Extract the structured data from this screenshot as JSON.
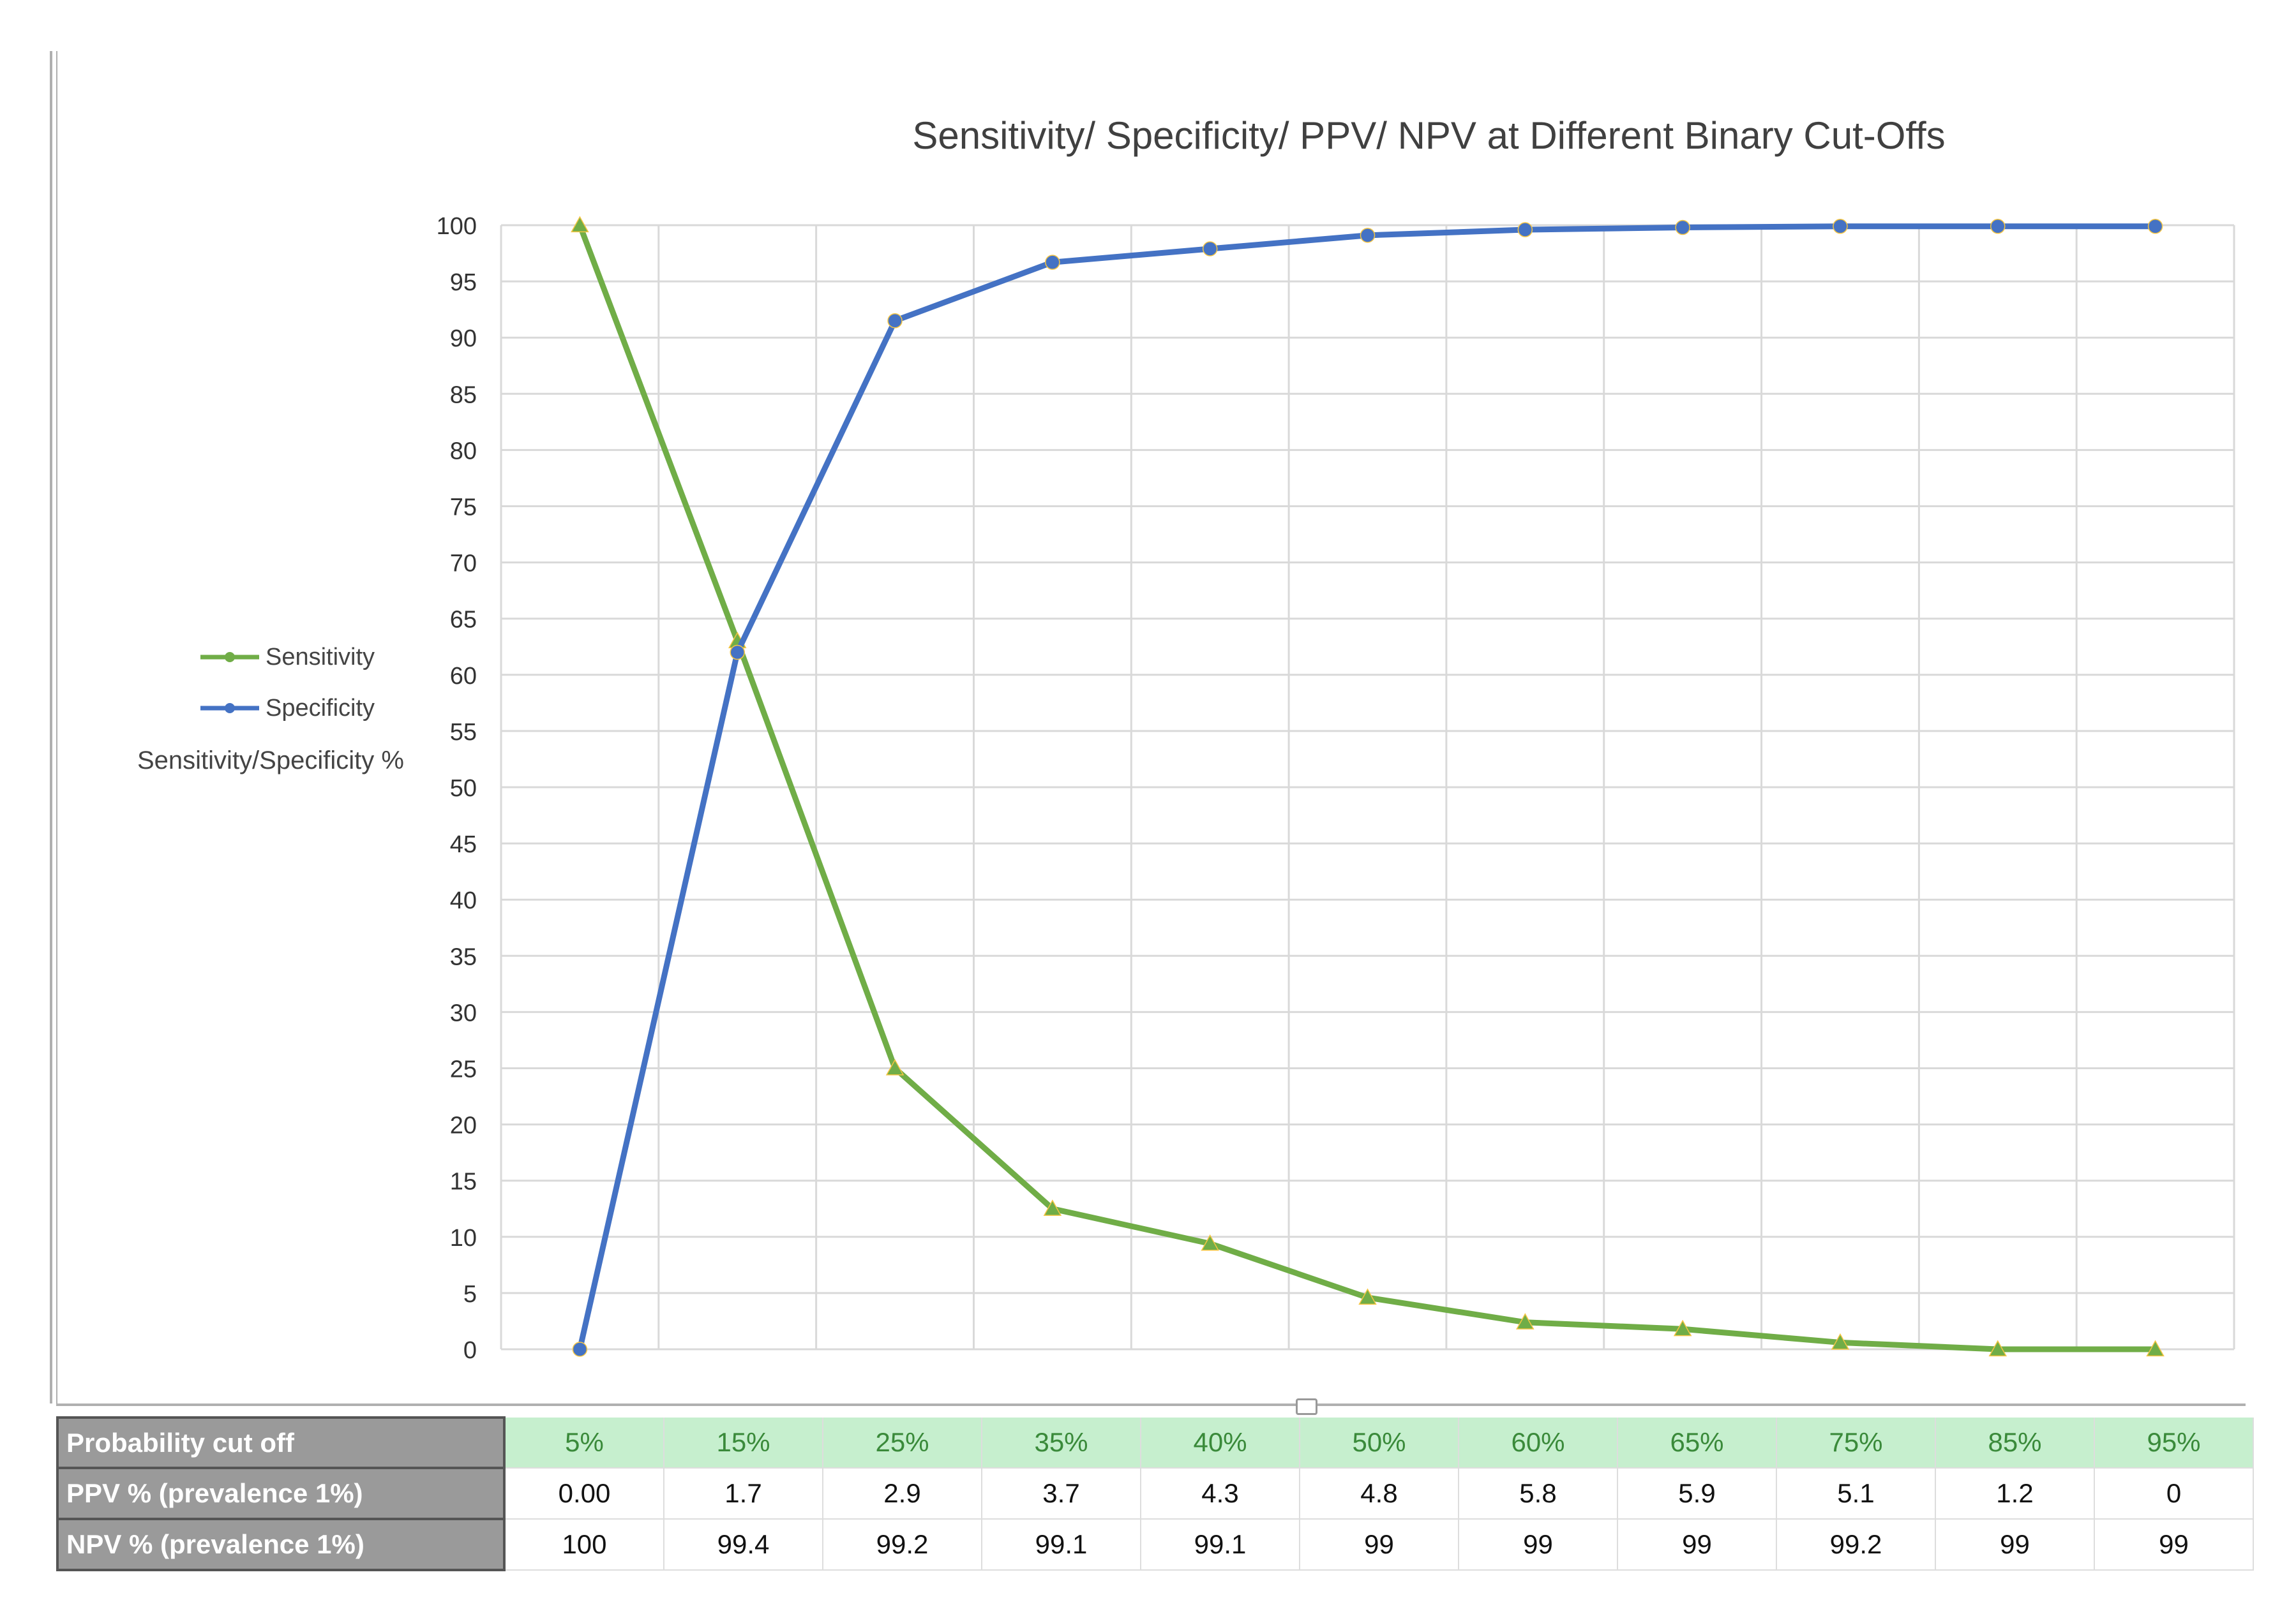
{
  "chart_data": {
    "type": "line",
    "title": "Sensitivity/ Specificity/ PPV/ NPV at Different Binary Cut-Offs",
    "ylabel": "Sensitivity/Specificity %",
    "xlabel": "",
    "ylim": [
      0,
      100
    ],
    "yticks": [
      0,
      5,
      10,
      15,
      20,
      25,
      30,
      35,
      40,
      45,
      50,
      55,
      60,
      65,
      70,
      75,
      80,
      85,
      90,
      95,
      100
    ],
    "categories": [
      "5%",
      "15%",
      "25%",
      "35%",
      "40%",
      "50%",
      "60%",
      "65%",
      "75%",
      "85%",
      "95%"
    ],
    "grid": true,
    "legend_position": "left",
    "series": [
      {
        "name": "Sensitivity",
        "color": "#70ad47",
        "marker": "triangle",
        "values": [
          100,
          63,
          25,
          12.5,
          9.4,
          4.6,
          2.4,
          1.8,
          0.6,
          0,
          0
        ]
      },
      {
        "name": "Specificity",
        "color": "#4472c4",
        "marker": "circle",
        "values": [
          0,
          62,
          91.5,
          96.7,
          97.9,
          99.1,
          99.6,
          99.8,
          99.9,
          99.9,
          99.9
        ]
      }
    ]
  },
  "table": {
    "rows": [
      {
        "label": "Probability cut off",
        "values": [
          "5%",
          "15%",
          "25%",
          "35%",
          "40%",
          "50%",
          "60%",
          "65%",
          "75%",
          "85%",
          "95%"
        ]
      },
      {
        "label": "PPV % (prevalence 1%)",
        "values": [
          "0.00",
          "1.7",
          "2.9",
          "3.7",
          "4.3",
          "4.8",
          "5.8",
          "5.9",
          "5.1",
          "1.2",
          "0"
        ]
      },
      {
        "label": "NPV % (prevalence 1%)",
        "values": [
          "100",
          "99.4",
          "99.2",
          "99.1",
          "99.1",
          "99",
          "99",
          "99",
          "99.2",
          "99",
          "99"
        ]
      }
    ]
  }
}
